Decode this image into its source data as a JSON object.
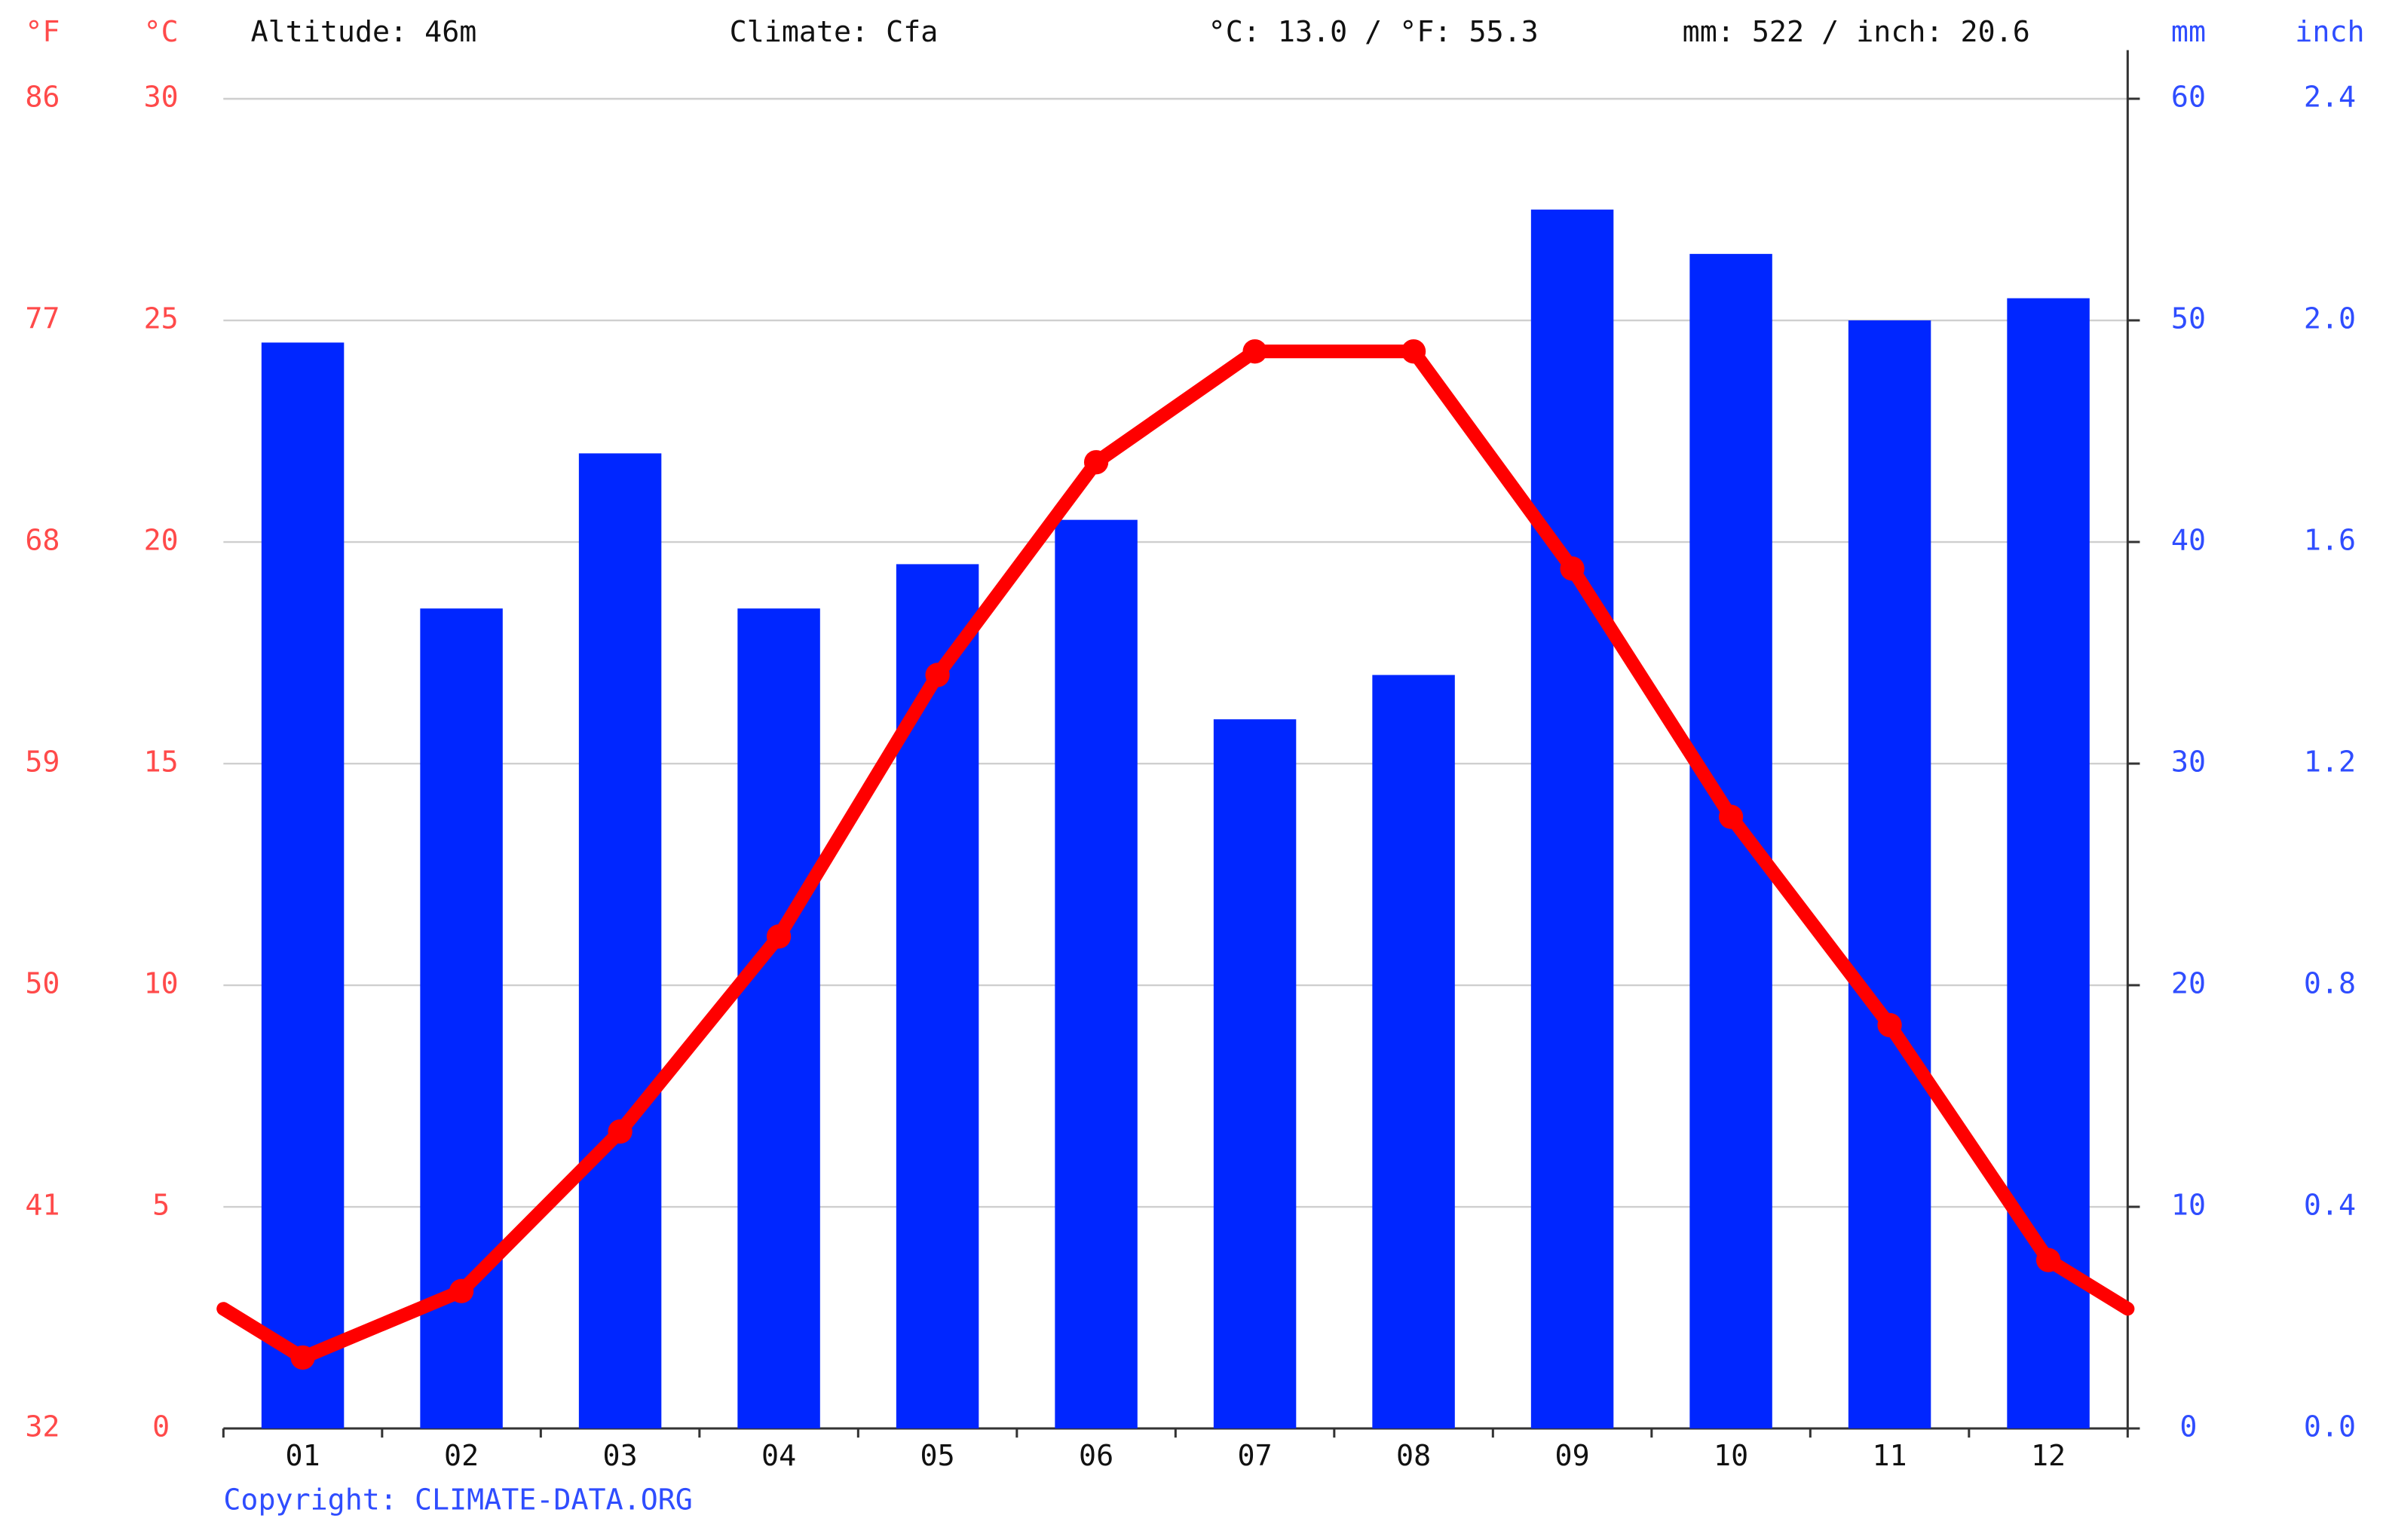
{
  "chart_data": {
    "type": "combo",
    "header": {
      "altitude": "Altitude: 46m",
      "climate": "Climate: Cfa",
      "temperature_mean": "°C: 13.0 / °F: 55.3",
      "precipitation_total": "mm: 522 / inch: 20.6"
    },
    "footer": "Copyright: CLIMATE-DATA.ORG",
    "categories": [
      "01",
      "02",
      "03",
      "04",
      "05",
      "06",
      "07",
      "08",
      "09",
      "10",
      "11",
      "12"
    ],
    "y_unit": "°C",
    "ylim": [
      0,
      30
    ],
    "yticks": [
      0,
      5,
      10,
      15,
      20,
      25,
      30
    ],
    "y3_unit": "°F",
    "y3lim": [
      32,
      86
    ],
    "y3ticks": [
      32,
      41,
      50,
      59,
      68,
      77,
      86
    ],
    "y2_unit": "mm",
    "y2lim": [
      0,
      60
    ],
    "y2ticks": [
      0,
      10,
      20,
      30,
      40,
      50,
      60
    ],
    "y4_unit": "inch",
    "y4lim": [
      0,
      2.4
    ],
    "y4ticks": [
      {
        "value": 0,
        "label": "0.0"
      },
      0.4,
      0.8,
      1.2,
      1.6,
      {
        "value": 2,
        "label": "2.0"
      },
      2.4
    ],
    "grid": true,
    "series": [
      {
        "type": "bar",
        "axis": "y2",
        "color": "#0026ff",
        "values": [
          49,
          37,
          44,
          37,
          39,
          41,
          32,
          34,
          55,
          53,
          50,
          51
        ]
      },
      {
        "type": "line",
        "axis": "y",
        "color": "#ff0000",
        "values": [
          1.6,
          3.1,
          6.7,
          11.1,
          17.0,
          21.8,
          24.3,
          24.3,
          19.4,
          13.8,
          9.1,
          3.8
        ]
      }
    ]
  }
}
